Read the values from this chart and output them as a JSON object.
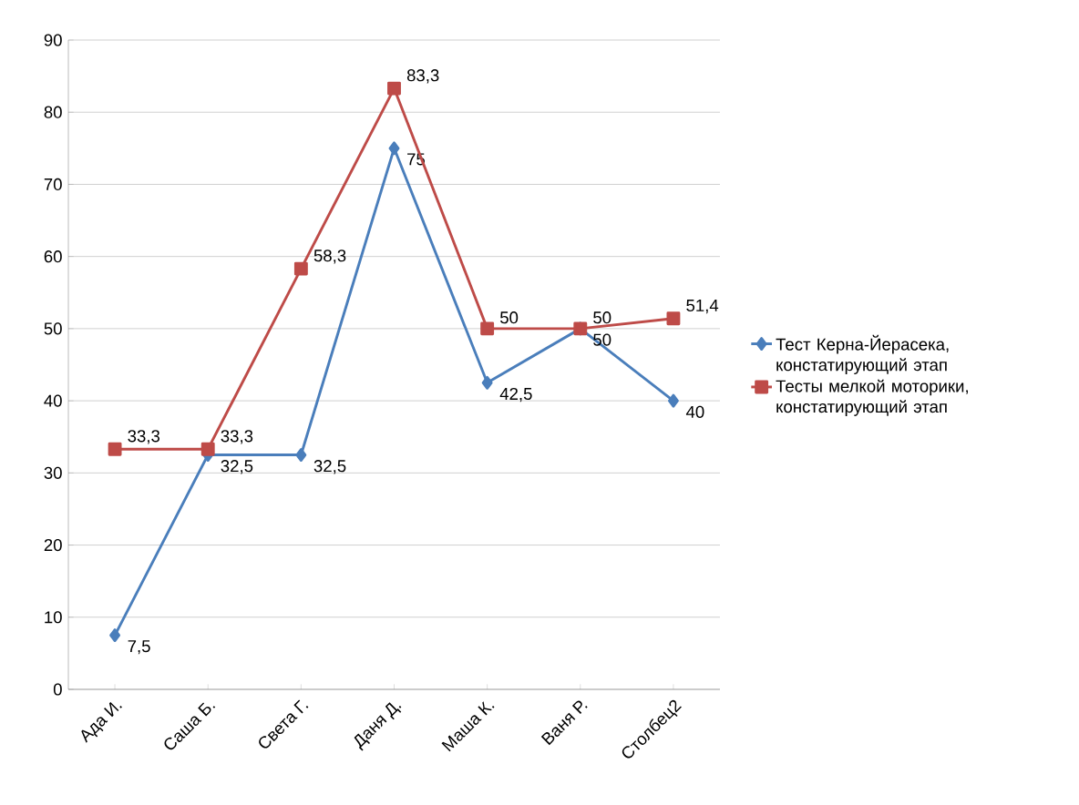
{
  "chart_data": {
    "type": "line",
    "categories": [
      "Ада И.",
      "Саша Б.",
      "Света Г.",
      "Даня Д.",
      "Маша К.",
      "Ваня Р.",
      "Столбец2"
    ],
    "series": [
      {
        "name": "Тест Керна-Йерасека, констатирующий этап",
        "color": "#4a7ebb",
        "marker": "diamond",
        "values": [
          7.5,
          32.5,
          32.5,
          75,
          42.5,
          50,
          40
        ],
        "value_labels": [
          "7,5",
          "32,5",
          "32,5",
          "75",
          "42,5",
          "50",
          "40"
        ]
      },
      {
        "name": "Тесты мелкой моторики, констатирующий этап",
        "color": "#be4b48",
        "marker": "square",
        "values": [
          33.3,
          33.3,
          58.3,
          83.3,
          50,
          50,
          51.4
        ],
        "value_labels": [
          "33,3",
          "33,3",
          "58,3",
          "83,3",
          "50",
          "50",
          "51,4"
        ]
      }
    ],
    "ylim": [
      0,
      90
    ],
    "yticks": [
      0,
      10,
      20,
      30,
      40,
      50,
      60,
      70,
      80,
      90
    ],
    "grid": "y",
    "legend": "right",
    "line_style": "solid"
  }
}
